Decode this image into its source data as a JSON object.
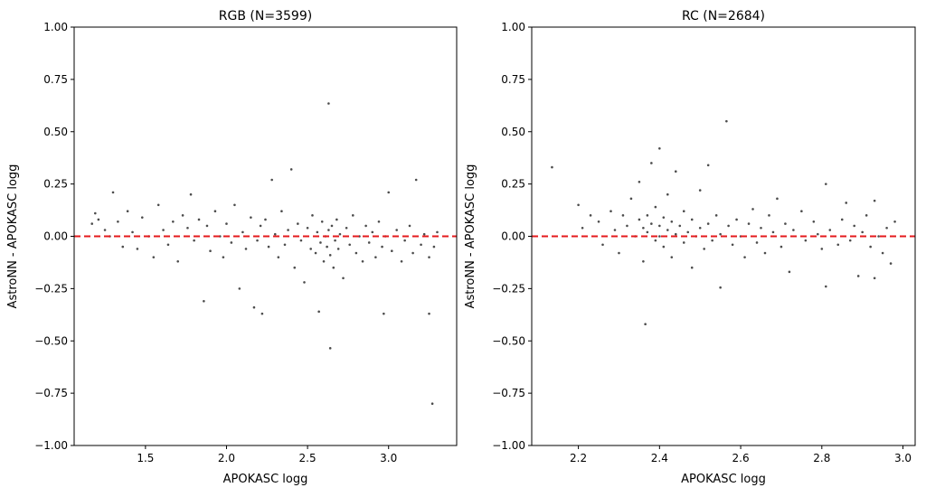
{
  "chart_data": [
    {
      "type": "scatter",
      "title": "RGB (N=3599)",
      "xlabel": "APOKASC logg",
      "ylabel": "AstroNN - APOKASC logg",
      "xlim": [
        1.06,
        3.42
      ],
      "ylim": [
        -1.0,
        1.0
      ],
      "xticks": [
        1.5,
        2.0,
        2.5,
        3.0
      ],
      "xtick_labels": [
        "1.5",
        "2.0",
        "2.5",
        "3.0"
      ],
      "yticks": [
        -1,
        -0.75,
        -0.5,
        -0.25,
        0,
        0.25,
        0.5,
        0.75,
        1
      ],
      "ytick_labels": [
        "−1.00",
        "−0.75",
        "−0.50",
        "−0.25",
        "0.00",
        "0.25",
        "0.50",
        "0.75",
        "1.00"
      ],
      "reference_line": {
        "y": 0,
        "color": "#e41a1c",
        "style": "dashed"
      },
      "point_color": "#000000",
      "grid": false,
      "points": [
        [
          1.17,
          0.06
        ],
        [
          1.19,
          0.11
        ],
        [
          1.21,
          0.08
        ],
        [
          1.25,
          0.03
        ],
        [
          1.28,
          0.0
        ],
        [
          1.3,
          0.21
        ],
        [
          1.33,
          0.07
        ],
        [
          1.36,
          -0.05
        ],
        [
          1.39,
          0.12
        ],
        [
          1.42,
          0.02
        ],
        [
          1.45,
          -0.06
        ],
        [
          1.48,
          0.09
        ],
        [
          1.52,
          0.0
        ],
        [
          1.55,
          -0.1
        ],
        [
          1.58,
          0.15
        ],
        [
          1.61,
          0.03
        ],
        [
          1.64,
          -0.04
        ],
        [
          1.67,
          0.07
        ],
        [
          1.7,
          -0.12
        ],
        [
          1.73,
          0.1
        ],
        [
          1.76,
          0.04
        ],
        [
          1.78,
          0.2
        ],
        [
          1.8,
          -0.02
        ],
        [
          1.83,
          0.08
        ],
        [
          1.86,
          -0.31
        ],
        [
          1.88,
          0.05
        ],
        [
          1.9,
          -0.07
        ],
        [
          1.93,
          0.12
        ],
        [
          1.96,
          0.0
        ],
        [
          1.98,
          -0.1
        ],
        [
          2.0,
          0.06
        ],
        [
          2.03,
          -0.03
        ],
        [
          2.05,
          0.15
        ],
        [
          2.08,
          -0.25
        ],
        [
          2.1,
          0.02
        ],
        [
          2.12,
          -0.06
        ],
        [
          2.15,
          0.09
        ],
        [
          2.17,
          -0.34
        ],
        [
          2.19,
          -0.02
        ],
        [
          2.21,
          0.05
        ],
        [
          2.22,
          -0.37
        ],
        [
          2.24,
          0.08
        ],
        [
          2.26,
          -0.05
        ],
        [
          2.28,
          0.27
        ],
        [
          2.3,
          0.01
        ],
        [
          2.32,
          -0.1
        ],
        [
          2.34,
          0.12
        ],
        [
          2.36,
          -0.04
        ],
        [
          2.38,
          0.03
        ],
        [
          2.4,
          0.32
        ],
        [
          2.42,
          -0.15
        ],
        [
          2.44,
          0.06
        ],
        [
          2.46,
          -0.02
        ],
        [
          2.48,
          -0.22
        ],
        [
          2.5,
          0.04
        ],
        [
          2.52,
          -0.06
        ],
        [
          2.53,
          0.1
        ],
        [
          2.55,
          -0.08
        ],
        [
          2.56,
          0.02
        ],
        [
          2.57,
          -0.36
        ],
        [
          2.58,
          -0.03
        ],
        [
          2.59,
          0.07
        ],
        [
          2.6,
          -0.12
        ],
        [
          2.61,
          0.0
        ],
        [
          2.62,
          -0.05
        ],
        [
          2.63,
          0.635
        ],
        [
          2.63,
          0.03
        ],
        [
          2.64,
          -0.535
        ],
        [
          2.64,
          -0.09
        ],
        [
          2.65,
          0.05
        ],
        [
          2.66,
          -0.15
        ],
        [
          2.67,
          -0.02
        ],
        [
          2.68,
          0.08
        ],
        [
          2.69,
          -0.06
        ],
        [
          2.7,
          0.01
        ],
        [
          2.72,
          -0.2
        ],
        [
          2.74,
          0.04
        ],
        [
          2.76,
          -0.04
        ],
        [
          2.78,
          0.1
        ],
        [
          2.8,
          -0.08
        ],
        [
          2.82,
          0.0
        ],
        [
          2.84,
          -0.12
        ],
        [
          2.86,
          0.05
        ],
        [
          2.88,
          -0.03
        ],
        [
          2.9,
          0.02
        ],
        [
          2.92,
          -0.1
        ],
        [
          2.94,
          0.07
        ],
        [
          2.96,
          -0.05
        ],
        [
          2.97,
          -0.37
        ],
        [
          2.98,
          0.0
        ],
        [
          3.0,
          0.21
        ],
        [
          3.02,
          -0.07
        ],
        [
          3.05,
          0.03
        ],
        [
          3.08,
          -0.12
        ],
        [
          3.1,
          -0.02
        ],
        [
          3.13,
          0.05
        ],
        [
          3.15,
          -0.08
        ],
        [
          3.17,
          0.27
        ],
        [
          3.2,
          -0.04
        ],
        [
          3.22,
          0.01
        ],
        [
          3.25,
          -0.37
        ],
        [
          3.25,
          -0.1
        ],
        [
          3.27,
          -0.8
        ],
        [
          3.28,
          -0.05
        ],
        [
          3.3,
          0.02
        ]
      ]
    },
    {
      "type": "scatter",
      "title": "RC (N=2684)",
      "xlabel": "APOKASC logg",
      "ylabel": "AstroNN - APOKASC logg",
      "xlim": [
        2.085,
        3.03
      ],
      "ylim": [
        -1.0,
        1.0
      ],
      "xticks": [
        2.2,
        2.4,
        2.6,
        2.8,
        3.0
      ],
      "xtick_labels": [
        "2.2",
        "2.4",
        "2.6",
        "2.8",
        "3.0"
      ],
      "yticks": [
        -1,
        -0.75,
        -0.5,
        -0.25,
        0,
        0.25,
        0.5,
        0.75,
        1
      ],
      "ytick_labels": [
        "−1.00",
        "−0.75",
        "−0.50",
        "−0.25",
        "0.00",
        "0.25",
        "0.50",
        "0.75",
        "1.00"
      ],
      "reference_line": {
        "y": 0,
        "color": "#e41a1c",
        "style": "dashed"
      },
      "point_color": "#000000",
      "grid": false,
      "points": [
        [
          2.135,
          0.33
        ],
        [
          2.2,
          0.15
        ],
        [
          2.21,
          0.04
        ],
        [
          2.23,
          0.1
        ],
        [
          2.25,
          0.07
        ],
        [
          2.26,
          -0.04
        ],
        [
          2.28,
          0.12
        ],
        [
          2.29,
          0.03
        ],
        [
          2.3,
          -0.08
        ],
        [
          2.31,
          0.1
        ],
        [
          2.32,
          0.05
        ],
        [
          2.33,
          0.18
        ],
        [
          2.34,
          0.0
        ],
        [
          2.35,
          0.08
        ],
        [
          2.35,
          0.26
        ],
        [
          2.36,
          0.04
        ],
        [
          2.36,
          -0.12
        ],
        [
          2.365,
          -0.42
        ],
        [
          2.37,
          0.1
        ],
        [
          2.37,
          0.02
        ],
        [
          2.38,
          0.35
        ],
        [
          2.38,
          0.06
        ],
        [
          2.39,
          -0.02
        ],
        [
          2.39,
          0.14
        ],
        [
          2.4,
          0.42
        ],
        [
          2.4,
          0.05
        ],
        [
          2.4,
          0.0
        ],
        [
          2.41,
          0.09
        ],
        [
          2.41,
          -0.05
        ],
        [
          2.42,
          0.03
        ],
        [
          2.42,
          0.2
        ],
        [
          2.43,
          0.07
        ],
        [
          2.43,
          -0.1
        ],
        [
          2.44,
          0.01
        ],
        [
          2.44,
          0.31
        ],
        [
          2.45,
          0.05
        ],
        [
          2.46,
          -0.03
        ],
        [
          2.46,
          0.12
        ],
        [
          2.47,
          0.02
        ],
        [
          2.48,
          -0.15
        ],
        [
          2.48,
          0.08
        ],
        [
          2.49,
          0.0
        ],
        [
          2.5,
          0.22
        ],
        [
          2.5,
          0.04
        ],
        [
          2.51,
          -0.06
        ],
        [
          2.52,
          0.34
        ],
        [
          2.52,
          0.06
        ],
        [
          2.53,
          -0.02
        ],
        [
          2.54,
          0.1
        ],
        [
          2.55,
          -0.245
        ],
        [
          2.55,
          0.01
        ],
        [
          2.565,
          0.55
        ],
        [
          2.57,
          0.05
        ],
        [
          2.58,
          -0.04
        ],
        [
          2.59,
          0.08
        ],
        [
          2.6,
          0.0
        ],
        [
          2.61,
          -0.1
        ],
        [
          2.62,
          0.06
        ],
        [
          2.63,
          0.13
        ],
        [
          2.64,
          -0.03
        ],
        [
          2.65,
          0.04
        ],
        [
          2.66,
          -0.08
        ],
        [
          2.67,
          0.1
        ],
        [
          2.68,
          0.02
        ],
        [
          2.69,
          0.18
        ],
        [
          2.7,
          -0.05
        ],
        [
          2.71,
          0.06
        ],
        [
          2.72,
          -0.17
        ],
        [
          2.73,
          0.03
        ],
        [
          2.75,
          0.12
        ],
        [
          2.76,
          -0.02
        ],
        [
          2.78,
          0.07
        ],
        [
          2.79,
          0.01
        ],
        [
          2.8,
          -0.06
        ],
        [
          2.81,
          0.25
        ],
        [
          2.81,
          -0.24
        ],
        [
          2.82,
          0.03
        ],
        [
          2.84,
          -0.04
        ],
        [
          2.85,
          0.08
        ],
        [
          2.86,
          0.16
        ],
        [
          2.87,
          -0.02
        ],
        [
          2.88,
          0.05
        ],
        [
          2.89,
          -0.19
        ],
        [
          2.9,
          0.02
        ],
        [
          2.91,
          0.1
        ],
        [
          2.92,
          -0.05
        ],
        [
          2.93,
          0.17
        ],
        [
          2.93,
          -0.2
        ],
        [
          2.94,
          0.0
        ],
        [
          2.95,
          -0.08
        ],
        [
          2.96,
          0.04
        ],
        [
          2.97,
          -0.13
        ],
        [
          2.98,
          0.07
        ]
      ]
    }
  ]
}
